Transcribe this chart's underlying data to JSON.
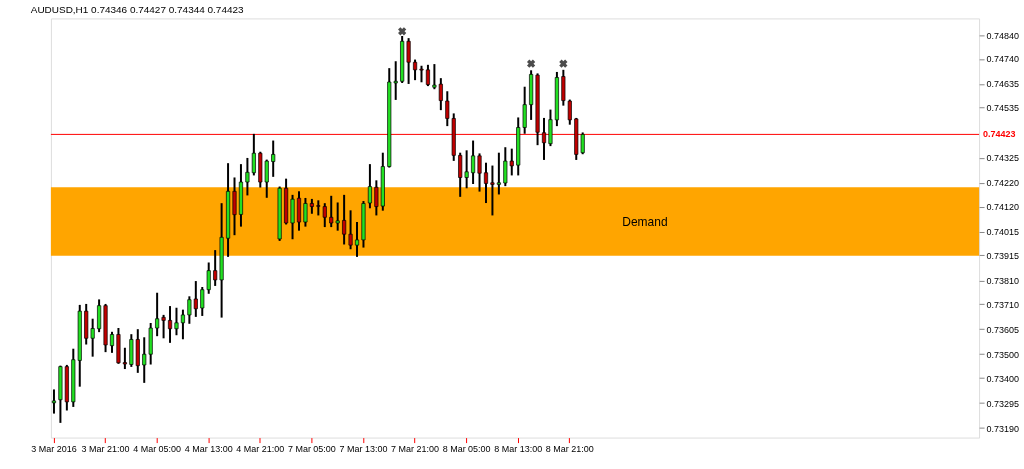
{
  "chart_data": {
    "type": "candlestick",
    "title": "AUDUSD,H1  0.74346 0.74427 0.74344 0.74423",
    "categories": [
      "3 Mar 2016",
      null,
      null,
      null,
      null,
      null,
      null,
      null,
      "3 Mar 21:00",
      null,
      null,
      null,
      null,
      null,
      null,
      null,
      "4 Mar 05:00",
      null,
      null,
      null,
      null,
      null,
      null,
      null,
      "4 Mar 13:00",
      null,
      null,
      null,
      null,
      null,
      null,
      null,
      "4 Mar 21:00",
      null,
      null,
      null,
      null,
      null,
      null,
      null,
      "7 Mar 05:00",
      null,
      null,
      null,
      null,
      null,
      null,
      null,
      "7 Mar 13:00",
      null,
      null,
      null,
      null,
      null,
      null,
      null,
      "7 Mar 21:00",
      null,
      null,
      null,
      null,
      null,
      null,
      null,
      "8 Mar 05:00",
      null,
      null,
      null,
      null,
      null,
      null,
      null,
      "8 Mar 13:00",
      null,
      null,
      null,
      null,
      null,
      null,
      null,
      "8 Mar 21:00",
      null,
      null,
      null,
      null,
      null,
      null,
      null,
      null,
      null,
      null,
      null,
      null,
      null,
      null,
      null,
      null,
      null,
      null,
      null,
      null,
      null,
      null,
      null,
      null,
      null,
      null,
      null,
      null,
      null,
      null,
      null,
      null,
      null,
      null,
      null,
      null,
      null,
      null,
      null,
      null,
      null,
      null,
      null,
      null,
      null,
      null,
      null,
      null,
      null,
      null,
      null,
      null,
      null,
      null,
      null,
      null,
      null,
      null,
      null,
      null,
      null,
      null,
      null
    ],
    "ohlc": [
      [
        0.73296,
        0.73348,
        0.73255,
        0.73304
      ],
      [
        0.73309,
        0.73448,
        0.73216,
        0.73448
      ],
      [
        0.73448,
        0.73451,
        0.73268,
        0.733
      ],
      [
        0.733,
        0.73519,
        0.73283,
        0.73477
      ],
      [
        0.73474,
        0.73703,
        0.73368,
        0.73681
      ],
      [
        0.73681,
        0.73707,
        0.73545,
        0.73567
      ],
      [
        0.73567,
        0.73645,
        0.73494,
        0.73608
      ],
      [
        0.73607,
        0.73726,
        0.73597,
        0.73704
      ],
      [
        0.73704,
        0.73707,
        0.73513,
        0.73539
      ],
      [
        0.73536,
        0.7359,
        0.7351,
        0.73583
      ],
      [
        0.73583,
        0.73606,
        0.73464,
        0.73464
      ],
      [
        0.73465,
        0.73523,
        0.73442,
        0.73459
      ],
      [
        0.73457,
        0.7358,
        0.73451,
        0.73562
      ],
      [
        0.73562,
        0.73601,
        0.73426,
        0.73452
      ],
      [
        0.73455,
        0.73567,
        0.73384,
        0.735
      ],
      [
        0.735,
        0.73627,
        0.73461,
        0.7361
      ],
      [
        0.7361,
        0.73754,
        0.7358,
        0.73649
      ],
      [
        0.73655,
        0.73661,
        0.73571,
        0.73642
      ],
      [
        0.73642,
        0.73698,
        0.73552,
        0.73607
      ],
      [
        0.73607,
        0.73691,
        0.73584,
        0.73632
      ],
      [
        0.73632,
        0.73683,
        0.73567,
        0.73665
      ],
      [
        0.73665,
        0.73739,
        0.73632,
        0.73729
      ],
      [
        0.73732,
        0.73803,
        0.73661,
        0.73691
      ],
      [
        0.73694,
        0.73778,
        0.73665,
        0.73771
      ],
      [
        0.73771,
        0.73881,
        0.73758,
        0.73851
      ],
      [
        0.73851,
        0.73933,
        0.73791,
        0.73812
      ],
      [
        0.73812,
        0.7413,
        0.73658,
        0.73991
      ],
      [
        0.73987,
        0.74298,
        0.73913,
        0.74184
      ],
      [
        0.74184,
        0.74238,
        0.74004,
        0.74086
      ],
      [
        0.74087,
        0.74294,
        0.7404,
        0.74223
      ],
      [
        0.74223,
        0.7432,
        0.74171,
        0.74264
      ],
      [
        0.74262,
        0.74421,
        0.74255,
        0.74344
      ],
      [
        0.74344,
        0.74346,
        0.74204,
        0.74223
      ],
      [
        0.74223,
        0.74313,
        0.74161,
        0.74311
      ],
      [
        0.74309,
        0.74393,
        0.74249,
        0.74339
      ],
      [
        0.73984,
        0.742,
        0.7398,
        0.74197
      ],
      [
        0.74197,
        0.74233,
        0.74049,
        0.74051
      ],
      [
        0.74051,
        0.74165,
        0.73987,
        0.74151
      ],
      [
        0.74155,
        0.7418,
        0.74023,
        0.74055
      ],
      [
        0.74055,
        0.74152,
        0.7404,
        0.74133
      ],
      [
        0.74133,
        0.74148,
        0.74094,
        0.7412
      ],
      [
        0.74124,
        0.74142,
        0.74087,
        0.74121
      ],
      [
        0.7412,
        0.7413,
        0.74038,
        0.74075
      ],
      [
        0.74075,
        0.74161,
        0.74038,
        0.74051
      ],
      [
        0.74051,
        0.74133,
        0.74023,
        0.7406
      ],
      [
        0.74062,
        0.74165,
        0.73965,
        0.74004
      ],
      [
        0.74004,
        0.741,
        0.73945,
        0.73958
      ],
      [
        0.73958,
        0.74051,
        0.73913,
        0.7398
      ],
      [
        0.7398,
        0.74139,
        0.73952,
        0.74133
      ],
      [
        0.74135,
        0.74294,
        0.74117,
        0.74204
      ],
      [
        0.74201,
        0.74226,
        0.74087,
        0.7412
      ],
      [
        0.74122,
        0.74342,
        0.74107,
        0.74288
      ],
      [
        0.74288,
        0.74697,
        0.74288,
        0.74643
      ],
      [
        0.74639,
        0.74726,
        0.74572,
        0.74646
      ],
      [
        0.74646,
        0.74832,
        0.74643,
        0.74814
      ],
      [
        0.74814,
        0.74823,
        0.74639,
        0.74726
      ],
      [
        0.74726,
        0.74733,
        0.74655,
        0.74694
      ],
      [
        0.74697,
        0.74707,
        0.74646,
        0.74693
      ],
      [
        0.74694,
        0.74711,
        0.7463,
        0.74632
      ],
      [
        0.74621,
        0.74714,
        0.74617,
        0.7463
      ],
      [
        0.74634,
        0.74655,
        0.74529,
        0.74565
      ],
      [
        0.74563,
        0.746,
        0.74462,
        0.7449
      ],
      [
        0.7449,
        0.74507,
        0.74316,
        0.74335
      ],
      [
        0.74335,
        0.74342,
        0.74165,
        0.74242
      ],
      [
        0.74242,
        0.74352,
        0.74201,
        0.74266
      ],
      [
        0.74262,
        0.74393,
        0.74219,
        0.74333
      ],
      [
        0.74333,
        0.74339,
        0.74187,
        0.7426
      ],
      [
        0.74262,
        0.743,
        0.74139,
        0.74217
      ],
      [
        0.7422,
        0.74288,
        0.74087,
        0.74213
      ],
      [
        0.74213,
        0.74342,
        0.74175,
        0.7422
      ],
      [
        0.74219,
        0.74365,
        0.7421,
        0.74311
      ],
      [
        0.74311,
        0.74359,
        0.74255,
        0.74291
      ],
      [
        0.74294,
        0.7449,
        0.74255,
        0.74452
      ],
      [
        0.74452,
        0.74619,
        0.7443,
        0.74548
      ],
      [
        0.74548,
        0.74688,
        0.74488,
        0.74675
      ],
      [
        0.74672,
        0.74675,
        0.74382,
        0.74432
      ],
      [
        0.7443,
        0.74488,
        0.7432,
        0.74388
      ],
      [
        0.74384,
        0.74523,
        0.74378,
        0.74485
      ],
      [
        0.74484,
        0.74681,
        0.74462,
        0.74662
      ],
      [
        0.74666,
        0.7469,
        0.74548,
        0.74565
      ],
      [
        0.74563,
        0.74565,
        0.74468,
        0.74484
      ],
      [
        0.74488,
        0.74488,
        0.7432,
        0.74339
      ],
      [
        0.74346,
        0.74427,
        0.74344,
        0.74423
      ],
      null,
      null,
      null,
      null,
      null,
      null,
      null,
      null,
      null,
      null,
      null,
      null,
      null,
      null,
      null,
      null,
      null,
      null,
      null,
      null,
      null,
      null,
      null,
      null,
      null,
      null,
      null,
      null,
      null,
      null,
      null,
      null,
      null,
      null,
      null,
      null,
      null,
      null,
      null,
      null,
      null,
      null,
      null,
      null,
      null,
      null,
      null,
      null,
      null,
      null,
      null,
      null,
      null,
      null,
      null,
      null,
      null,
      null,
      null,
      null,
      null
    ],
    "series": [
      {
        "type": "scatter",
        "color": "#000000",
        "marker": "cross",
        "values": [
          null,
          null,
          null,
          null,
          null,
          null,
          null,
          null,
          null,
          null,
          null,
          null,
          null,
          null,
          null,
          null,
          null,
          null,
          null,
          null,
          null,
          null,
          null,
          null,
          null,
          null,
          null,
          null,
          null,
          null,
          null,
          null,
          null,
          null,
          null,
          null,
          null,
          null,
          null,
          null,
          null,
          null,
          null,
          null,
          null,
          null,
          null,
          null,
          null,
          null,
          null,
          null,
          null,
          null,
          0.74856,
          null,
          null,
          null,
          null,
          null,
          null,
          null,
          null,
          null,
          null,
          null,
          null,
          null,
          null,
          null,
          null,
          null,
          null,
          null,
          0.7472,
          null,
          null,
          null,
          null,
          0.7472,
          null,
          null,
          null,
          null,
          null,
          null,
          null,
          null,
          null,
          null,
          null,
          null,
          null,
          null,
          null,
          null,
          null,
          null,
          null,
          null,
          null,
          null,
          null,
          null,
          null,
          null,
          null,
          null,
          null,
          null,
          null,
          null,
          null,
          null,
          null,
          null,
          null,
          null,
          null,
          null,
          null,
          null,
          null,
          null,
          null,
          null,
          null,
          null,
          null,
          null,
          null,
          null,
          null,
          null,
          null,
          null,
          null,
          null,
          null,
          null,
          null,
          null,
          null,
          null
        ]
      }
    ],
    "ylim": [
      0.7315,
      0.7491
    ],
    "yticks": [
      {
        "value": 0.7484,
        "label": "0.74840"
      },
      {
        "value": 0.7474,
        "label": "0.74740"
      },
      {
        "value": 0.74635,
        "label": "0.74635"
      },
      {
        "value": 0.74535,
        "label": "0.74535"
      },
      {
        "value": 0.74325,
        "label": "0.74325"
      },
      {
        "value": 0.7422,
        "label": "0.74220"
      },
      {
        "value": 0.7412,
        "label": "0.74120"
      },
      {
        "value": 0.74015,
        "label": "0.74015"
      },
      {
        "value": 0.73915,
        "label": "0.73915"
      },
      {
        "value": 0.7381,
        "label": "0.73810"
      },
      {
        "value": 0.7371,
        "label": "0.73710"
      },
      {
        "value": 0.73605,
        "label": "0.73605"
      },
      {
        "value": 0.735,
        "label": "0.73500"
      },
      {
        "value": 0.734,
        "label": "0.73400"
      },
      {
        "value": 0.73295,
        "label": "0.73295"
      },
      {
        "value": 0.7319,
        "label": "0.73190"
      }
    ],
    "ref_lines": [
      {
        "axis": "y",
        "value": 0.74423,
        "label": "0.74423",
        "color": "#ff0000"
      }
    ],
    "bands": [
      {
        "axis": "y",
        "from": 0.73913,
        "to": 0.74201,
        "label": "Demand",
        "color": "#ffa500"
      }
    ],
    "grid": false
  }
}
